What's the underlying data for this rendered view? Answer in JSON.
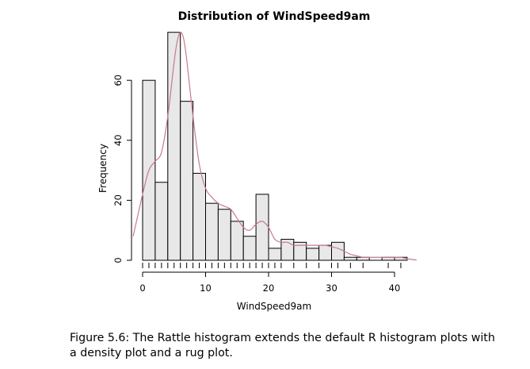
{
  "chart_data": {
    "type": "bar",
    "title": "Distribution of WindSpeed9am",
    "xlabel": "WindSpeed9am",
    "ylabel": "Frequency",
    "xlim": [
      -1.5,
      43.5
    ],
    "ylim": [
      0,
      77
    ],
    "x_ticks": [
      0,
      10,
      20,
      30,
      40
    ],
    "y_ticks": [
      0,
      20,
      40,
      60
    ],
    "bin_width": 2,
    "bins": [
      {
        "start": 0,
        "end": 2,
        "count": 60
      },
      {
        "start": 2,
        "end": 4,
        "count": 26
      },
      {
        "start": 4,
        "end": 6,
        "count": 76
      },
      {
        "start": 6,
        "end": 8,
        "count": 53
      },
      {
        "start": 8,
        "end": 10,
        "count": 29
      },
      {
        "start": 10,
        "end": 12,
        "count": 19
      },
      {
        "start": 12,
        "end": 14,
        "count": 17
      },
      {
        "start": 14,
        "end": 16,
        "count": 13
      },
      {
        "start": 16,
        "end": 18,
        "count": 8
      },
      {
        "start": 18,
        "end": 20,
        "count": 22
      },
      {
        "start": 20,
        "end": 22,
        "count": 4
      },
      {
        "start": 22,
        "end": 24,
        "count": 7
      },
      {
        "start": 24,
        "end": 26,
        "count": 6
      },
      {
        "start": 26,
        "end": 28,
        "count": 4
      },
      {
        "start": 28,
        "end": 30,
        "count": 5
      },
      {
        "start": 30,
        "end": 32,
        "count": 6
      },
      {
        "start": 32,
        "end": 34,
        "count": 1
      },
      {
        "start": 34,
        "end": 36,
        "count": 1
      },
      {
        "start": 36,
        "end": 38,
        "count": 0
      },
      {
        "start": 38,
        "end": 40,
        "count": 1
      },
      {
        "start": 40,
        "end": 42,
        "count": 1
      }
    ],
    "density": {
      "x": [
        -1.5,
        0,
        1,
        2,
        3,
        4,
        5,
        5.5,
        6,
        6.5,
        7,
        8,
        9,
        10,
        11,
        12,
        13,
        14,
        15,
        16,
        17,
        18,
        19,
        20,
        21,
        22,
        23,
        24,
        25,
        26,
        27,
        28,
        29,
        30,
        31,
        32,
        33,
        34,
        35,
        36,
        37,
        38,
        39,
        40,
        41,
        42,
        43.5
      ],
      "y": [
        8,
        22,
        30,
        33,
        36,
        48,
        66,
        73,
        76,
        74,
        67,
        48,
        32,
        24,
        21,
        19,
        18,
        17,
        14,
        11,
        10,
        12,
        13,
        11,
        7,
        6,
        6,
        5,
        5,
        5,
        5,
        5,
        5,
        4.5,
        4,
        3,
        2,
        1.5,
        1,
        1,
        1,
        1,
        1,
        1,
        1,
        0.5,
        0.1
      ]
    },
    "rug": [
      0,
      1,
      2,
      3,
      4,
      5,
      6,
      7,
      8,
      9,
      10,
      11,
      12,
      13,
      14,
      15,
      16,
      17,
      18,
      19,
      20,
      21,
      22,
      24,
      26,
      28,
      30,
      31,
      33,
      35,
      39,
      41
    ],
    "colors": {
      "bar_fill": "#e8e8e8",
      "bar_stroke": "#000000",
      "density_line": "#c97a8a"
    }
  },
  "caption": "Figure 5.6: The Rattle histogram extends the default R histogram plots with a density plot and a rug plot."
}
